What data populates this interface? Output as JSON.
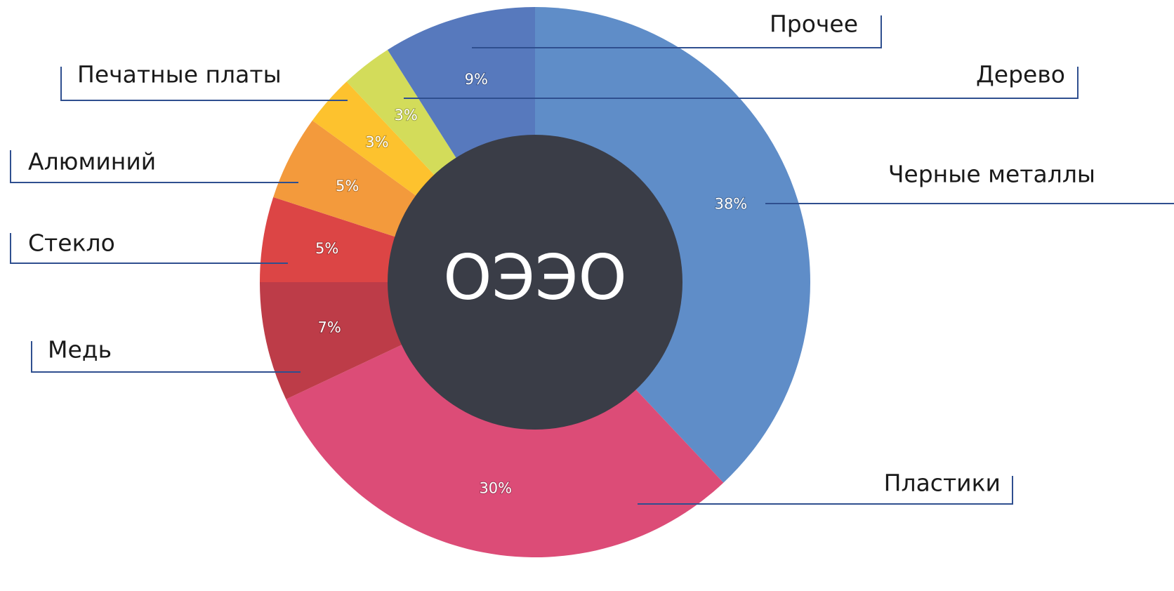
{
  "chart_data": {
    "type": "donut",
    "center_label": "ОЭЭО",
    "categories": [
      "Черные металлы",
      "Пластики",
      "Медь",
      "Стекло",
      "Алюминий",
      "Печатные платы",
      "Дерево",
      "Прочее"
    ],
    "values": [
      38,
      30,
      7,
      5,
      5,
      3,
      3,
      9
    ],
    "value_labels": [
      "38%",
      "30%",
      "7%",
      "5%",
      "5%",
      "3%",
      "3%",
      "9%"
    ],
    "colors": [
      "#5f8dc8",
      "#dc4c77",
      "#bd3c48",
      "#dc4545",
      "#f39a3c",
      "#fdc22e",
      "#d3dc5a",
      "#5779bd"
    ],
    "center_color": "#3a3d47"
  }
}
